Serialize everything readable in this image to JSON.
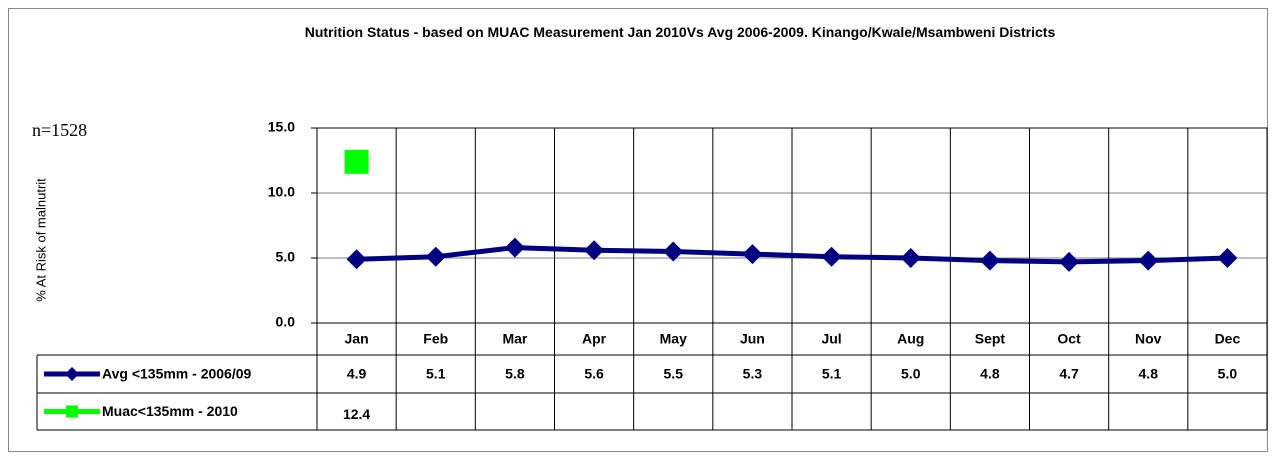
{
  "chart_data": {
    "type": "line",
    "title": "Nutrition Status - based on MUAC Measurement Jan 2010Vs Avg 2006-2009. Kinango/Kwale/Msambweni Districts",
    "annotation": "n=1528",
    "y_label": "% At Risk of malnutrit",
    "categories": [
      "Jan",
      "Feb",
      "Mar",
      "Apr",
      "May",
      "Jun",
      "Jul",
      "Aug",
      "Sept",
      "Oct",
      "Nov",
      "Dec"
    ],
    "series": [
      {
        "name": "Avg <135mm -  2006/09",
        "color": "#000080",
        "marker": "diamond",
        "values": [
          4.9,
          5.1,
          5.8,
          5.6,
          5.5,
          5.3,
          5.1,
          5.0,
          4.8,
          4.7,
          4.8,
          5.0
        ],
        "value_labels": [
          "4.9",
          "5.1",
          "5.8",
          "5.6",
          "5.5",
          "5.3",
          "5.1",
          "5.0",
          "4.8",
          "4.7",
          "4.8",
          "5.0"
        ]
      },
      {
        "name": "Muac<135mm - 2010",
        "color": "#00ff00",
        "marker": "square",
        "values": [
          12.4,
          null,
          null,
          null,
          null,
          null,
          null,
          null,
          null,
          null,
          null,
          null
        ],
        "value_labels": [
          "12.4",
          null,
          null,
          null,
          null,
          null,
          null,
          null,
          null,
          null,
          null,
          null
        ]
      }
    ],
    "ylim": [
      0,
      15
    ],
    "yticks": [
      {
        "value": 0,
        "label": "0.0"
      },
      {
        "value": 5,
        "label": "5.0"
      },
      {
        "value": 10,
        "label": "10.0"
      },
      {
        "value": 15,
        "label": "15.0"
      }
    ],
    "grid": true
  }
}
